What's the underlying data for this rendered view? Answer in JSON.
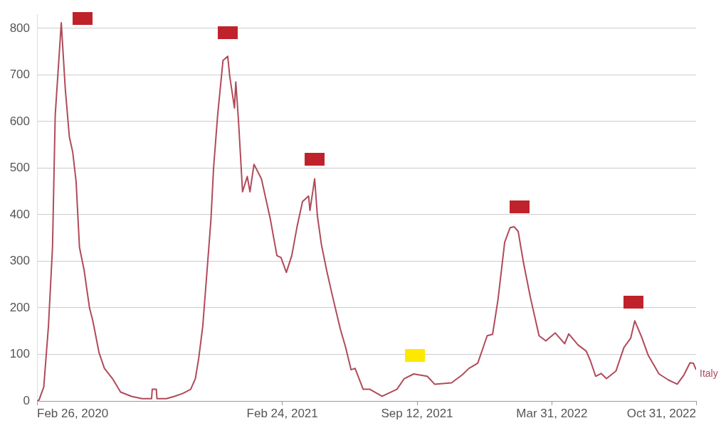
{
  "chart_data": {
    "type": "line",
    "marker": "none",
    "grid": "y",
    "x": [
      "2020-02-26",
      "2020-02-29",
      "2020-03-07",
      "2020-03-14",
      "2020-03-20",
      "2020-03-24",
      "2020-04-02",
      "2020-04-08",
      "2020-04-14",
      "2020-04-19",
      "2020-04-24",
      "2020-04-29",
      "2020-05-06",
      "2020-05-10",
      "2020-05-14",
      "2020-05-19",
      "2020-05-28",
      "2020-06-05",
      "2020-06-17",
      "2020-06-29",
      "2020-07-15",
      "2020-07-31",
      "2020-08-14",
      "2020-08-15",
      "2020-08-21",
      "2020-08-22",
      "2020-09-05",
      "2020-09-17",
      "2020-09-29",
      "2020-10-11",
      "2020-10-18",
      "2020-10-23",
      "2020-10-29",
      "2020-11-04",
      "2020-11-10",
      "2020-11-14",
      "2020-11-20",
      "2020-11-28",
      "2020-12-05",
      "2020-12-08",
      "2020-12-15",
      "2020-12-17",
      "2020-12-21",
      "2020-12-27",
      "2021-01-03",
      "2021-01-07",
      "2021-01-13",
      "2021-01-24",
      "2021-02-06",
      "2021-02-16",
      "2021-02-22",
      "2021-03-02",
      "2021-03-10",
      "2021-03-18",
      "2021-03-26",
      "2021-04-04",
      "2021-04-06",
      "2021-04-13",
      "2021-04-17",
      "2021-04-23",
      "2021-05-01",
      "2021-05-09",
      "2021-05-21",
      "2021-05-29",
      "2021-06-06",
      "2021-06-12",
      "2021-06-24",
      "2021-07-04",
      "2021-07-22",
      "2021-08-13",
      "2021-08-24",
      "2021-09-07",
      "2021-09-27",
      "2021-10-08",
      "2021-11-02",
      "2021-11-18",
      "2021-11-28",
      "2021-12-11",
      "2021-12-25",
      "2022-01-02",
      "2022-01-10",
      "2022-01-20",
      "2022-01-28",
      "2022-02-03",
      "2022-02-09",
      "2022-02-17",
      "2022-02-27",
      "2022-03-12",
      "2022-03-22",
      "2022-04-05",
      "2022-04-19",
      "2022-04-25",
      "2022-05-09",
      "2022-05-21",
      "2022-05-27",
      "2022-06-04",
      "2022-06-12",
      "2022-06-20",
      "2022-07-04",
      "2022-07-16",
      "2022-07-26",
      "2022-08-01",
      "2022-08-11",
      "2022-08-21",
      "2022-09-06",
      "2022-09-20",
      "2022-10-03",
      "2022-10-13",
      "2022-10-22",
      "2022-10-27",
      "2022-10-31"
    ],
    "series": [
      {
        "name": "Italy",
        "color": "#b04a5a",
        "values": [
          0,
          2,
          30,
          161,
          330,
          613,
          812,
          669,
          567,
          534,
          471,
          330,
          280,
          239,
          199,
          171,
          104,
          70,
          48,
          19,
          10,
          5,
          5,
          25,
          25,
          5,
          5,
          10,
          16,
          25,
          48,
          92,
          161,
          274,
          387,
          500,
          613,
          731,
          740,
          697,
          629,
          685,
          601,
          449,
          482,
          449,
          508,
          477,
          392,
          312,
          308,
          276,
          312,
          375,
          428,
          440,
          409,
          477,
          398,
          336,
          279,
          228,
          155,
          115,
          67,
          70,
          25,
          25,
          10,
          25,
          48,
          58,
          53,
          36,
          39,
          56,
          70,
          81,
          140,
          143,
          217,
          341,
          372,
          374,
          364,
          296,
          223,
          140,
          129,
          146,
          123,
          144,
          120,
          107,
          87,
          53,
          59,
          48,
          64,
          115,
          135,
          172,
          138,
          98,
          58,
          45,
          36,
          56,
          82,
          81,
          67
        ]
      }
    ],
    "xlim": [
      "2020-02-26",
      "2022-10-31"
    ],
    "xticks": [
      {
        "value": "2020-02-26",
        "label": "Feb 26, 2020"
      },
      {
        "value": "2021-02-24",
        "label": "Feb 24, 2021"
      },
      {
        "value": "2021-09-12",
        "label": "Sep 12, 2021"
      },
      {
        "value": "2022-03-31",
        "label": "Mar 31, 2022"
      },
      {
        "value": "2022-10-31",
        "label": "Oct 31, 2022"
      }
    ],
    "ylim": [
      0,
      830
    ],
    "yticks": [
      0,
      100,
      200,
      300,
      400,
      500,
      600,
      700,
      800
    ]
  }
}
